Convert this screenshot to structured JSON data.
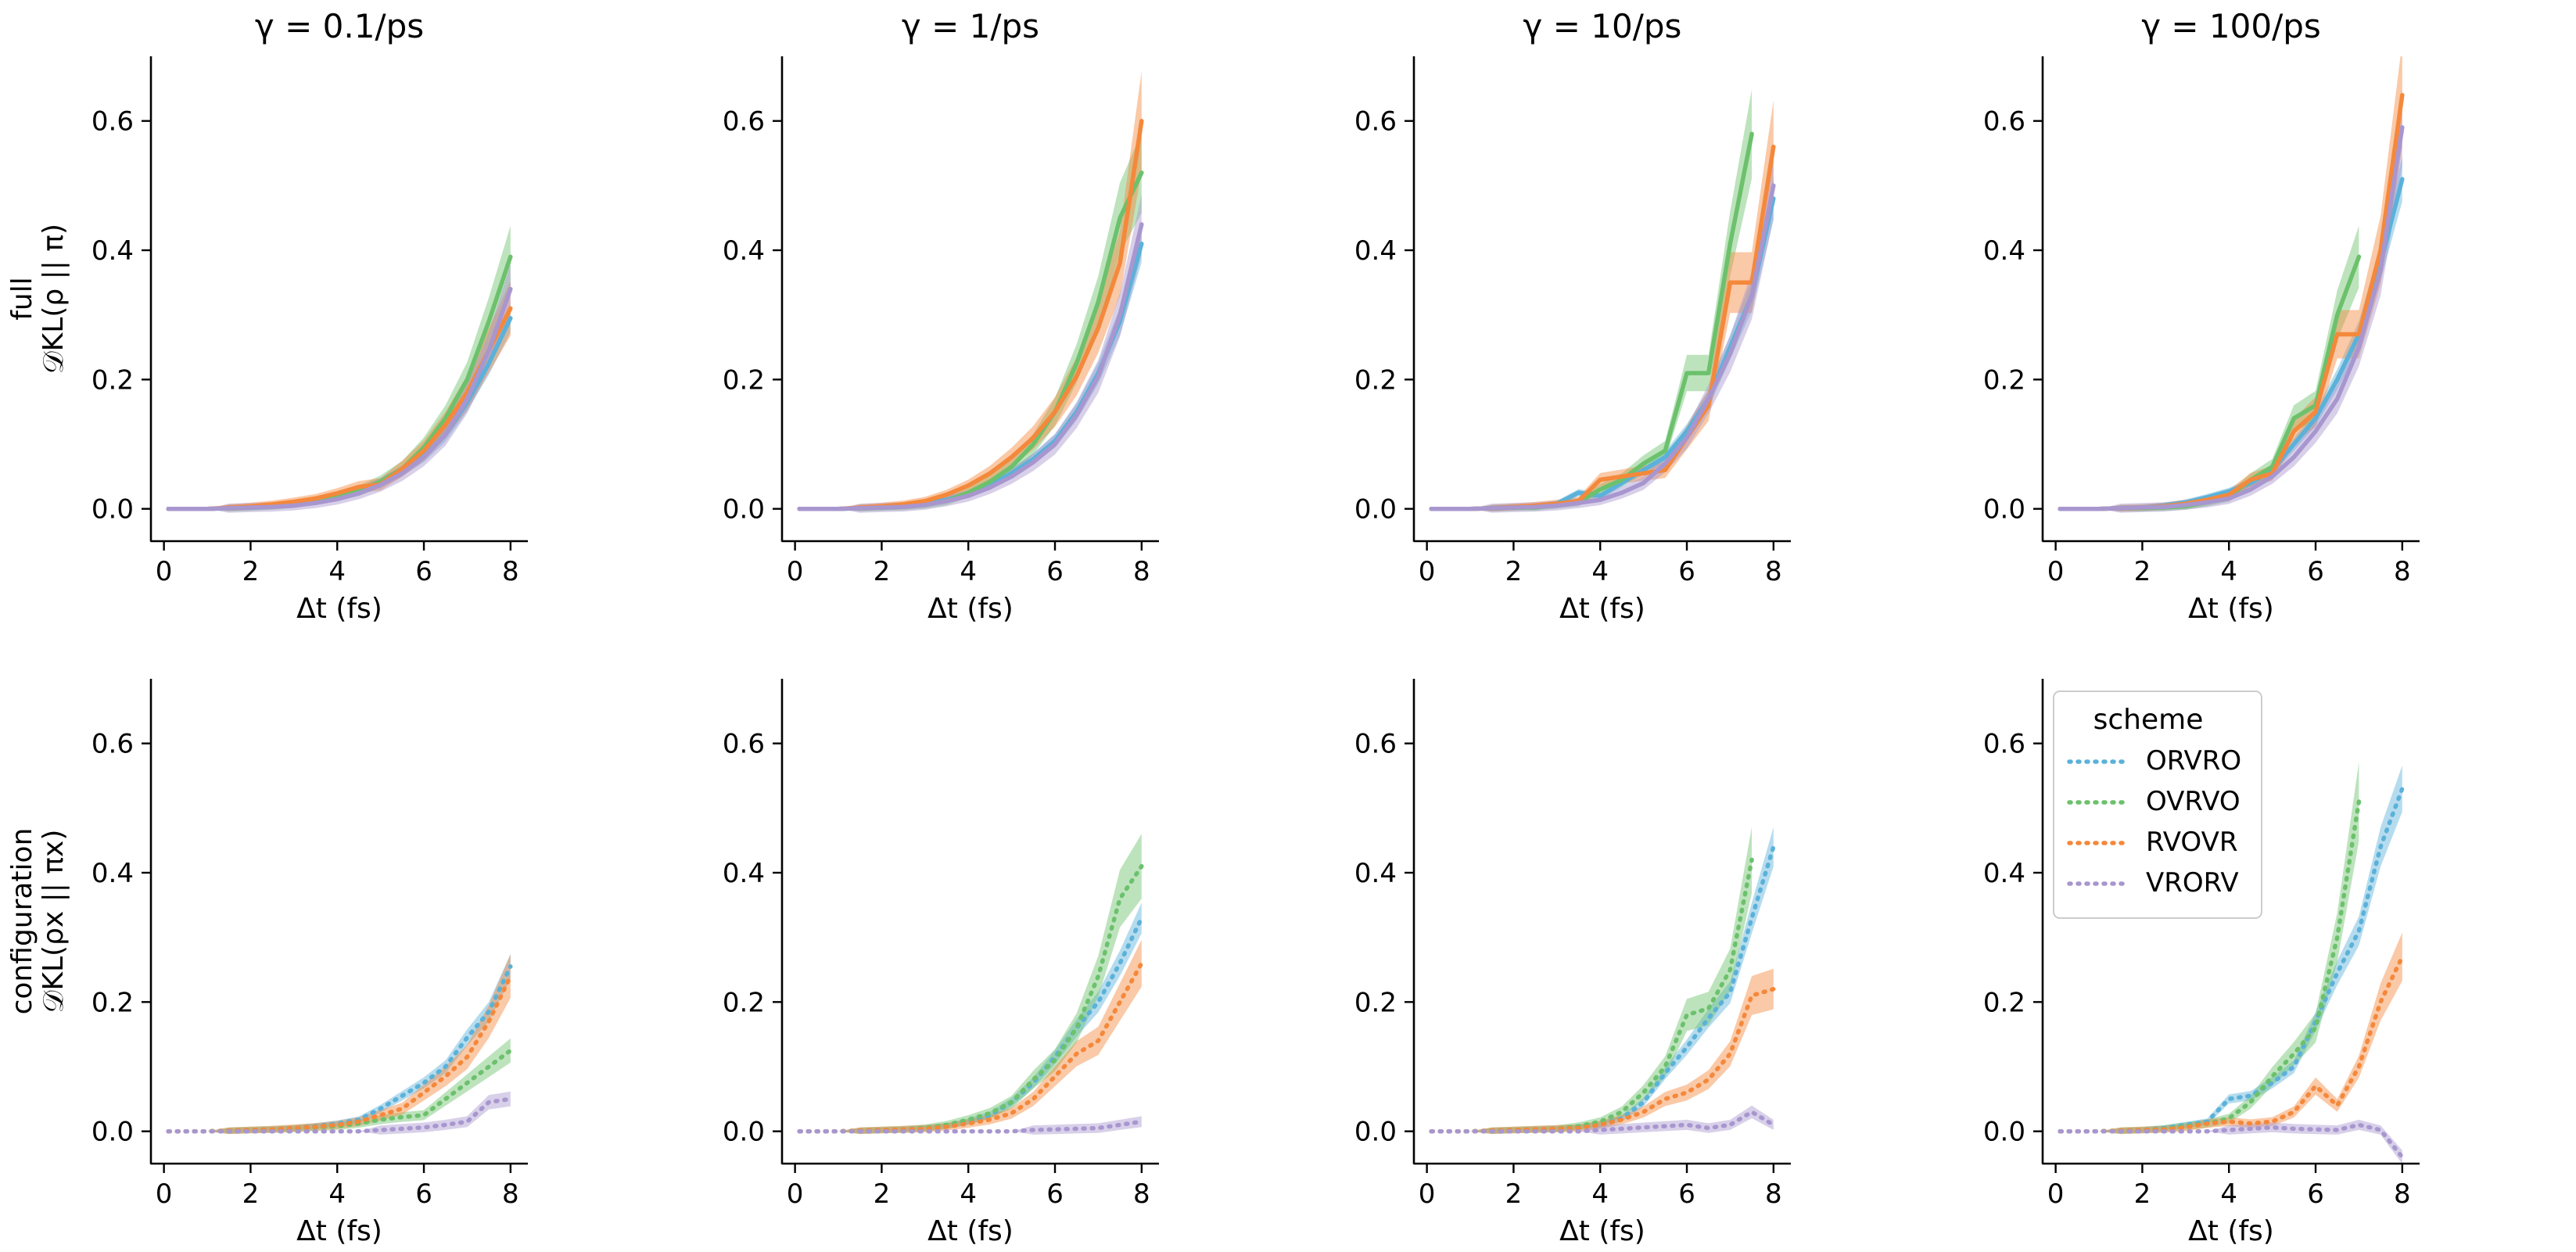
{
  "chart_data": {
    "type": "line",
    "layout": "2 rows x 4 columns of subplots",
    "column_titles": [
      "γ = 0.1/ps",
      "γ = 1/ps",
      "γ = 10/ps",
      "γ = 100/ps"
    ],
    "row_labels": [
      {
        "line1": "full",
        "line2": "𝒟KL(ρ || π)"
      },
      {
        "line1": "configuration",
        "line2": "𝒟KL(ρx || πx)"
      }
    ],
    "xlabel": "Δt (fs)",
    "xlim": [
      -0.3,
      8.4
    ],
    "ylim": [
      -0.05,
      0.7
    ],
    "xticks": [
      "0",
      "2",
      "4",
      "6",
      "8"
    ],
    "yticks": [
      "0.0",
      "0.2",
      "0.4",
      "0.6"
    ],
    "x": [
      0.1,
      0.5,
      1.0,
      1.5,
      2.0,
      2.5,
      3.0,
      3.5,
      4.0,
      4.5,
      5.0,
      5.5,
      6.0,
      6.5,
      7.0,
      7.5,
      8.0
    ],
    "legend": {
      "title": "scheme",
      "placement": "upper-left of bottom-right panel",
      "entries": [
        "ORVRO",
        "OVRVO",
        "RVOVR",
        "VRORV"
      ]
    },
    "series_colors": {
      "ORVRO": "#5bb1d9",
      "OVRVO": "#6cc16c",
      "RVOVR": "#f4883b",
      "VRORV": "#a896cf"
    },
    "panels": [
      {
        "row": 0,
        "col": 0,
        "linestyle": "solid",
        "series": [
          {
            "name": "ORVRO",
            "values": [
              0,
              0,
              0,
              0.001,
              0.002,
              0.004,
              0.007,
              0.012,
              0.019,
              0.028,
              0.041,
              0.058,
              0.081,
              0.115,
              0.165,
              0.225,
              0.295
            ]
          },
          {
            "name": "OVRVO",
            "values": [
              0,
              0,
              0,
              0.001,
              0.002,
              0.004,
              0.007,
              0.012,
              0.019,
              0.028,
              0.042,
              0.062,
              0.095,
              0.14,
              0.2,
              0.29,
              0.39
            ]
          },
          {
            "name": "RVOVR",
            "values": [
              0,
              0,
              0,
              0.002,
              0.004,
              0.007,
              0.011,
              0.016,
              0.024,
              0.034,
              0.038,
              0.062,
              0.09,
              0.13,
              0.18,
              0.245,
              0.31
            ]
          },
          {
            "name": "VRORV",
            "values": [
              0,
              0,
              0,
              0.001,
              0.002,
              0.003,
              0.005,
              0.009,
              0.015,
              0.024,
              0.037,
              0.055,
              0.08,
              0.115,
              0.17,
              0.245,
              0.34
            ]
          }
        ]
      },
      {
        "row": 0,
        "col": 1,
        "linestyle": "solid",
        "series": [
          {
            "name": "ORVRO",
            "values": [
              0,
              0,
              0,
              0.001,
              0.002,
              0.004,
              0.008,
              0.014,
              0.023,
              0.037,
              0.055,
              0.077,
              0.105,
              0.15,
              0.21,
              0.29,
              0.41
            ]
          },
          {
            "name": "OVRVO",
            "values": [
              0,
              0,
              0,
              0.001,
              0.002,
              0.003,
              0.006,
              0.012,
              0.025,
              0.042,
              0.065,
              0.1,
              0.15,
              0.225,
              0.32,
              0.45,
              0.52
            ]
          },
          {
            "name": "RVOVR",
            "values": [
              0,
              0,
              0,
              0.002,
              0.004,
              0.007,
              0.012,
              0.022,
              0.036,
              0.055,
              0.08,
              0.11,
              0.15,
              0.205,
              0.28,
              0.38,
              0.6
            ]
          },
          {
            "name": "VRORV",
            "values": [
              0,
              0,
              0,
              0.001,
              0.002,
              0.003,
              0.006,
              0.012,
              0.02,
              0.033,
              0.05,
              0.072,
              0.1,
              0.145,
              0.205,
              0.3,
              0.44
            ]
          }
        ]
      },
      {
        "row": 0,
        "col": 2,
        "linestyle": "solid",
        "series": [
          {
            "name": "ORVRO",
            "values": [
              0,
              0,
              0,
              0.001,
              0.002,
              0.004,
              0.008,
              0.025,
              0.02,
              0.04,
              0.06,
              0.08,
              0.12,
              0.17,
              0.25,
              0.33,
              0.48
            ]
          },
          {
            "name": "OVRVO",
            "values": [
              0,
              0,
              0,
              0.001,
              0.002,
              0.002,
              0.006,
              0.01,
              0.03,
              0.045,
              0.07,
              0.09,
              0.21,
              0.21,
              0.41,
              0.58,
              null
            ]
          },
          {
            "name": "RVOVR",
            "values": [
              0,
              0,
              0,
              0.001,
              0.003,
              0.005,
              0.008,
              0.012,
              0.045,
              0.05,
              0.055,
              0.06,
              0.11,
              0.16,
              0.35,
              0.35,
              0.56
            ]
          },
          {
            "name": "VRORV",
            "values": [
              0,
              0,
              0,
              0.001,
              0.002,
              0.003,
              0.005,
              0.009,
              0.014,
              0.025,
              0.04,
              0.07,
              0.11,
              0.17,
              0.24,
              0.33,
              0.5
            ]
          }
        ]
      },
      {
        "row": 0,
        "col": 3,
        "linestyle": "solid",
        "series": [
          {
            "name": "ORVRO",
            "values": [
              0,
              0,
              0,
              0.001,
              0.002,
              0.005,
              0.01,
              0.018,
              0.027,
              0.04,
              0.06,
              0.1,
              0.14,
              0.2,
              0.27,
              0.38,
              0.51
            ]
          },
          {
            "name": "OVRVO",
            "values": [
              0,
              0,
              0,
              0.001,
              0.001,
              0.002,
              0.004,
              0.01,
              0.018,
              0.045,
              0.065,
              0.14,
              0.16,
              0.3,
              0.39,
              null,
              null
            ]
          },
          {
            "name": "RVOVR",
            "values": [
              0,
              0,
              0,
              0.001,
              0.002,
              0.004,
              0.008,
              0.014,
              0.022,
              0.045,
              0.055,
              0.12,
              0.15,
              0.27,
              0.27,
              0.4,
              0.64
            ]
          },
          {
            "name": "VRORV",
            "values": [
              0,
              0,
              0,
              0.001,
              0.002,
              0.003,
              0.006,
              0.01,
              0.016,
              0.03,
              0.05,
              0.08,
              0.12,
              0.17,
              0.25,
              0.37,
              0.59
            ]
          }
        ]
      },
      {
        "row": 1,
        "col": 0,
        "linestyle": "dotted",
        "series": [
          {
            "name": "ORVRO",
            "values": [
              0,
              0,
              0,
              0.001,
              0.002,
              0.003,
              0.005,
              0.008,
              0.012,
              0.018,
              0.035,
              0.055,
              0.075,
              0.1,
              0.145,
              0.185,
              0.255
            ]
          },
          {
            "name": "OVRVO",
            "values": [
              0,
              0,
              0,
              0.001,
              0.002,
              0.003,
              0.004,
              0.006,
              0.008,
              0.012,
              0.018,
              0.022,
              0.025,
              0.05,
              0.075,
              0.1,
              0.125
            ]
          },
          {
            "name": "RVOVR",
            "values": [
              0,
              0,
              0,
              0.001,
              0.002,
              0.003,
              0.005,
              0.007,
              0.01,
              0.015,
              0.025,
              0.035,
              0.06,
              0.085,
              0.115,
              0.17,
              0.24
            ]
          },
          {
            "name": "VRORV",
            "values": [
              0,
              0,
              0,
              0,
              0,
              0,
              0,
              0,
              0,
              0,
              0.002,
              0.004,
              0.006,
              0.01,
              0.015,
              0.045,
              0.05
            ]
          }
        ]
      },
      {
        "row": 1,
        "col": 1,
        "linestyle": "dotted",
        "series": [
          {
            "name": "ORVRO",
            "values": [
              0,
              0,
              0,
              0.001,
              0.002,
              0.003,
              0.005,
              0.008,
              0.015,
              0.025,
              0.045,
              0.075,
              0.115,
              0.16,
              0.2,
              0.26,
              0.33
            ]
          },
          {
            "name": "OVRVO",
            "values": [
              0,
              0,
              0,
              0.001,
              0.002,
              0.003,
              0.005,
              0.01,
              0.018,
              0.028,
              0.045,
              0.08,
              0.11,
              0.16,
              0.24,
              0.36,
              0.41
            ]
          },
          {
            "name": "RVOVR",
            "values": [
              0,
              0,
              0,
              0.001,
              0.002,
              0.003,
              0.004,
              0.007,
              0.012,
              0.018,
              0.028,
              0.05,
              0.085,
              0.12,
              0.14,
              0.2,
              0.26
            ]
          },
          {
            "name": "VRORV",
            "values": [
              0,
              0,
              0,
              0,
              0,
              0,
              0,
              0,
              0,
              0,
              0,
              0.002,
              0.003,
              0.004,
              0.005,
              0.01,
              0.015
            ]
          }
        ]
      },
      {
        "row": 1,
        "col": 2,
        "linestyle": "dotted",
        "series": [
          {
            "name": "ORVRO",
            "values": [
              0,
              0,
              0,
              0.001,
              0.002,
              0.003,
              0.004,
              0.006,
              0.01,
              0.02,
              0.045,
              0.09,
              0.13,
              0.175,
              0.215,
              0.33,
              0.44
            ]
          },
          {
            "name": "OVRVO",
            "values": [
              0,
              0,
              0,
              0.001,
              0.002,
              0.003,
              0.004,
              0.008,
              0.015,
              0.03,
              0.06,
              0.1,
              0.18,
              0.19,
              0.25,
              0.42,
              null
            ]
          },
          {
            "name": "RVOVR",
            "values": [
              0,
              0,
              0,
              0.001,
              0.002,
              0.003,
              0.004,
              0.005,
              0.01,
              0.018,
              0.03,
              0.05,
              0.06,
              0.08,
              0.12,
              0.21,
              0.22
            ]
          },
          {
            "name": "VRORV",
            "values": [
              0,
              0,
              0,
              0,
              0,
              0,
              0,
              0,
              0.002,
              0.004,
              0.006,
              0.008,
              0.01,
              0.005,
              0.01,
              0.03,
              0.01
            ]
          }
        ]
      },
      {
        "row": 1,
        "col": 3,
        "linestyle": "dotted",
        "series": [
          {
            "name": "ORVRO",
            "values": [
              0,
              0,
              0,
              0.001,
              0.002,
              0.005,
              0.01,
              0.015,
              0.05,
              0.055,
              0.075,
              0.1,
              0.17,
              0.245,
              0.31,
              0.44,
              0.53
            ]
          },
          {
            "name": "OVRVO",
            "values": [
              0,
              0,
              0,
              0.001,
              0.002,
              0.004,
              0.008,
              0.012,
              0.02,
              0.045,
              0.085,
              0.12,
              0.16,
              0.3,
              0.51,
              null,
              null
            ]
          },
          {
            "name": "RVOVR",
            "values": [
              0,
              0,
              0,
              0.001,
              0.002,
              0.003,
              0.006,
              0.012,
              0.015,
              0.012,
              0.015,
              0.03,
              0.07,
              0.04,
              0.1,
              0.2,
              0.27
            ]
          },
          {
            "name": "VRORV",
            "values": [
              0,
              0,
              0,
              0,
              0,
              0,
              0,
              0,
              0.002,
              0.004,
              0.006,
              0.004,
              0.003,
              0.002,
              0.01,
              0.002,
              -0.04
            ]
          }
        ]
      }
    ]
  }
}
